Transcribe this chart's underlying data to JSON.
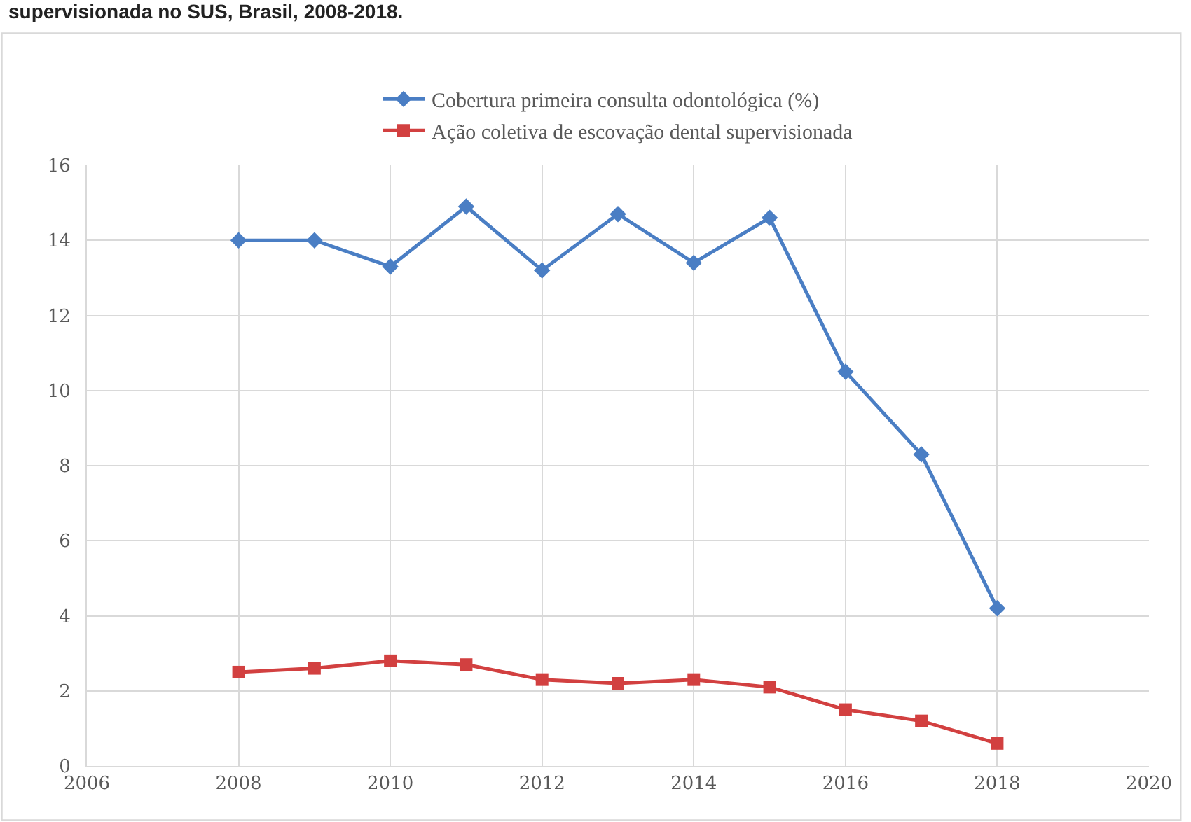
{
  "chart_data": {
    "type": "line",
    "title": "supervisionada no SUS, Brasil, 2008-2018.",
    "x": [
      2008,
      2009,
      2010,
      2011,
      2012,
      2013,
      2014,
      2015,
      2016,
      2017,
      2018
    ],
    "series": [
      {
        "name": "Cobertura primeira consulta odontológica (%)",
        "color": "#4a7ec4",
        "marker": "diamond",
        "values": [
          14.0,
          14.0,
          13.3,
          14.9,
          13.2,
          14.7,
          13.4,
          14.6,
          10.5,
          8.3,
          4.2
        ]
      },
      {
        "name": "Ação coletiva de escovação dental supervisionada",
        "color": "#d24040",
        "marker": "square",
        "values": [
          2.5,
          2.6,
          2.8,
          2.7,
          2.3,
          2.2,
          2.3,
          2.1,
          1.5,
          1.2,
          0.6
        ]
      }
    ],
    "xlim": [
      2006,
      2020
    ],
    "xticks": [
      2006,
      2008,
      2010,
      2012,
      2014,
      2016,
      2018,
      2020
    ],
    "ylim": [
      0,
      16
    ],
    "yticks": [
      0,
      2,
      4,
      6,
      8,
      10,
      12,
      14,
      16
    ],
    "grid": true,
    "legend": "top",
    "line_style": "solid"
  }
}
